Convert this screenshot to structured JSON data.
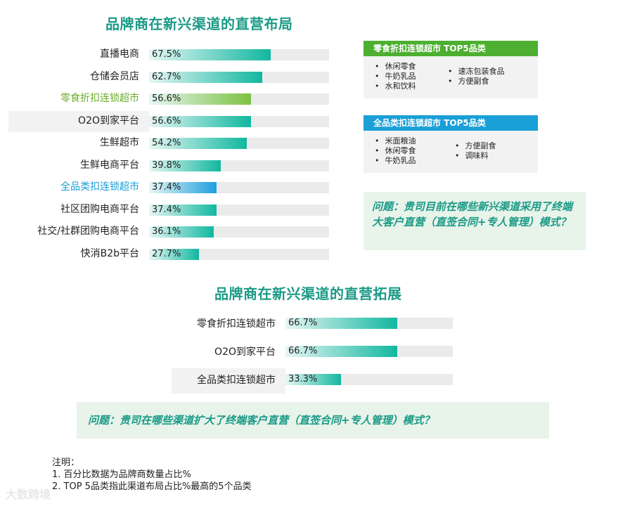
{
  "chart1": {
    "title": "品牌商在新兴渠道的直营布局",
    "type": "bar",
    "categories": [
      "直播电商",
      "仓储会员店",
      "零食折扣连锁超市",
      "O2O到家平台",
      "生鲜超市",
      "生鲜电商平台",
      "全品类扣连锁超市",
      "社区团购电商平台",
      "社交/社群团购电商平台",
      "快消B2b平台"
    ],
    "values": [
      67.5,
      62.7,
      56.6,
      56.6,
      54.2,
      39.8,
      37.4,
      37.4,
      36.1,
      27.7
    ],
    "value_labels": [
      "67.5%",
      "62.7%",
      "56.6%",
      "56.6%",
      "54.2%",
      "39.8%",
      "37.4%",
      "37.4%",
      "36.1%",
      "27.7%"
    ],
    "ylim": [
      0,
      100
    ],
    "highlight_green_index": 2,
    "highlight_blue_index": 6,
    "shaded_row_index": 3
  },
  "box_green": {
    "header": "零食折扣连锁超市 TOP5品类",
    "col1": [
      "休闲零食",
      "牛奶乳品",
      "水和饮料"
    ],
    "col2": [
      "速冻包装食品",
      "方便副食"
    ]
  },
  "box_blue": {
    "header": "全品类扣连锁超市 TOP5品类",
    "col1": [
      "米面粮油",
      "休闲零食",
      "牛奶乳品"
    ],
    "col2": [
      "方便副食",
      "调味料"
    ]
  },
  "question1": "问题：贵司目前在哪些新兴渠道采用了终端大客户直营（直签合同+专人管理）模式？",
  "chart2": {
    "title": "品牌商在新兴渠道的直营拓展",
    "type": "bar",
    "categories": [
      "零食折扣连锁超市",
      "O2O到家平台",
      "全品类扣连锁超市"
    ],
    "values": [
      66.7,
      66.7,
      33.3
    ],
    "value_labels": [
      "66.7%",
      "66.7%",
      "33.3%"
    ],
    "ylim": [
      0,
      100
    ],
    "shaded_row_index": 2
  },
  "question2": "问题：贵司在哪些渠道扩大了终端客户直营（直签合同+专人管理）模式？",
  "notes": {
    "heading": "注明：",
    "line1": "1. 百分比数据为品牌商数量占比%",
    "line2": "2. TOP 5品类指此渠道布局占比%最高的5个品类"
  },
  "watermark": "大数跨境",
  "colors": {
    "title": "#1a9a86",
    "bar_gradient_start": "#e6f7f4",
    "bar_gradient_end": "#12b7a0",
    "bar_green_end": "#7dc142",
    "bar_blue_end": "#1e9fe0",
    "box_green_header": "#4caf2f",
    "box_blue_header": "#1a9fd6",
    "label_green": "#6aad2a",
    "label_blue": "#1a9fd6"
  }
}
